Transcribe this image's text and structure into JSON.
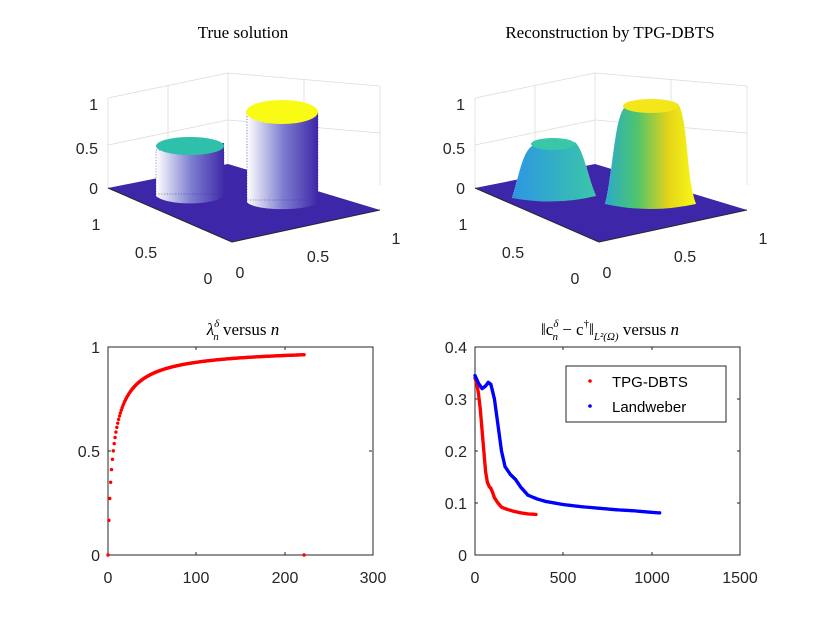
{
  "figure": {
    "titles": {
      "top_left": "True solution",
      "top_right": "Reconstruction by TPG-DBTS"
    },
    "title_bl": {
      "lambda": "λ",
      "sub": "n",
      "sup": "δ",
      "rest": " versus ",
      "n": "n"
    },
    "title_br": {
      "pre": "‖c",
      "sub": "n",
      "sup": "δ",
      "mid": " − c",
      "dag": "†",
      "post": "‖",
      "norm_sub": "L²(Ω)",
      "rest": " versus ",
      "n": "n"
    }
  },
  "colors": {
    "tpg": "#ff0000",
    "landweber": "#0000ff",
    "floor": "#3e26a8",
    "cyan": "#2ec0aa",
    "yellow": "#f9fb15"
  },
  "chart_data": [
    {
      "id": "true-solution",
      "type": "surface",
      "title": "True solution",
      "z_ticks": [
        "0",
        "0.5",
        "1"
      ],
      "y_ticks": [
        "1",
        "0.5",
        "0"
      ],
      "x_ticks": [
        "0",
        "0.5",
        "1"
      ],
      "cylinders": [
        {
          "name": "small-cylinder",
          "height": 0.5,
          "color": "cyan"
        },
        {
          "name": "large-cylinder",
          "height": 1.0,
          "color": "yellow"
        }
      ]
    },
    {
      "id": "reconstruction",
      "type": "surface",
      "title": "Reconstruction by TPG-DBTS",
      "z_ticks": [
        "0",
        "0.5",
        "1"
      ],
      "y_ticks": [
        "1",
        "0.5",
        "0"
      ],
      "x_ticks": [
        "0",
        "0.5",
        "1"
      ],
      "bumps": [
        {
          "name": "small-bump",
          "height": 0.5
        },
        {
          "name": "large-bump",
          "height": 1.0
        }
      ]
    },
    {
      "id": "lambda",
      "type": "scatter",
      "xlim": [
        0,
        300
      ],
      "ylim": [
        0,
        1
      ],
      "x_ticks": [
        "0",
        "100",
        "200",
        "300"
      ],
      "y_ticks": [
        "0",
        "0.5",
        "1"
      ],
      "series": [
        {
          "name": "lambda_n",
          "color": "#ff0000",
          "formula": "1 - 1/(1 + k*n^0.9), with k = 0.2",
          "n_range": [
            1,
            222
          ],
          "extra_points": [
            [
              0,
              0
            ],
            [
              222,
              0
            ]
          ]
        }
      ]
    },
    {
      "id": "error",
      "type": "line",
      "xlim": [
        0,
        1500
      ],
      "ylim": [
        0,
        0.4
      ],
      "x_ticks": [
        "0",
        "500",
        "1000",
        "1500"
      ],
      "y_ticks": [
        "0",
        "0.1",
        "0.2",
        "0.3",
        "0.4"
      ],
      "legend": {
        "position": "top-right",
        "entries": [
          "TPG-DBTS",
          "Landweber"
        ]
      },
      "series": [
        {
          "name": "TPG-DBTS",
          "color": "#ff0000",
          "points": [
            [
              0,
              0.34
            ],
            [
              10,
              0.33
            ],
            [
              20,
              0.31
            ],
            [
              30,
              0.28
            ],
            [
              40,
              0.24
            ],
            [
              50,
              0.2
            ],
            [
              60,
              0.16
            ],
            [
              70,
              0.14
            ],
            [
              80,
              0.132
            ],
            [
              90,
              0.128
            ],
            [
              100,
              0.12
            ],
            [
              110,
              0.11
            ],
            [
              130,
              0.1
            ],
            [
              150,
              0.092
            ],
            [
              180,
              0.088
            ],
            [
              220,
              0.084
            ],
            [
              260,
              0.081
            ],
            [
              300,
              0.079
            ],
            [
              345,
              0.078
            ]
          ]
        },
        {
          "name": "Landweber",
          "color": "#0000ff",
          "points": [
            [
              0,
              0.345
            ],
            [
              20,
              0.33
            ],
            [
              40,
              0.32
            ],
            [
              60,
              0.325
            ],
            [
              75,
              0.332
            ],
            [
              90,
              0.328
            ],
            [
              110,
              0.3
            ],
            [
              130,
              0.25
            ],
            [
              150,
              0.2
            ],
            [
              170,
              0.17
            ],
            [
              200,
              0.155
            ],
            [
              230,
              0.145
            ],
            [
              260,
              0.13
            ],
            [
              300,
              0.115
            ],
            [
              350,
              0.108
            ],
            [
              400,
              0.103
            ],
            [
              500,
              0.097
            ],
            [
              600,
              0.093
            ],
            [
              700,
              0.09
            ],
            [
              800,
              0.087
            ],
            [
              900,
              0.085
            ],
            [
              1000,
              0.082
            ],
            [
              1045,
              0.081
            ]
          ]
        }
      ]
    }
  ]
}
